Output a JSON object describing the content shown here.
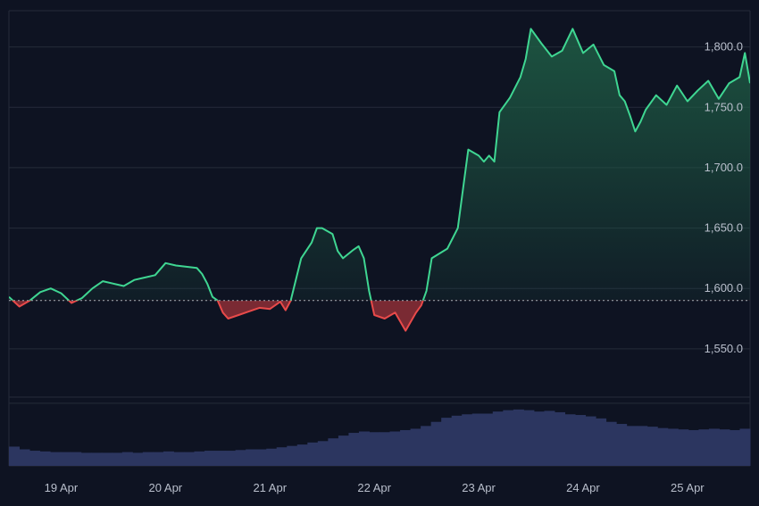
{
  "chart_data": {
    "type": "area",
    "baseline": 1590,
    "ylim": [
      1510,
      1830
    ],
    "y_ticks": [
      {
        "value": 1550,
        "label": "1,550.0"
      },
      {
        "value": 1600,
        "label": "1,600.0"
      },
      {
        "value": 1650,
        "label": "1,650.0"
      },
      {
        "value": 1700,
        "label": "1,700.0"
      },
      {
        "value": 1750,
        "label": "1,750.0"
      },
      {
        "value": 1800,
        "label": "1,800.0"
      }
    ],
    "x_ticks": [
      {
        "day": 0.5,
        "label": "19 Apr"
      },
      {
        "day": 1.5,
        "label": "20 Apr"
      },
      {
        "day": 2.5,
        "label": "21 Apr"
      },
      {
        "day": 3.5,
        "label": "22 Apr"
      },
      {
        "day": 4.5,
        "label": "23 Apr"
      },
      {
        "day": 5.5,
        "label": "24 Apr"
      },
      {
        "day": 6.5,
        "label": "25 Apr"
      }
    ],
    "xlim": [
      0,
      7.1
    ],
    "price_series": {
      "name": "",
      "points": [
        [
          0.0,
          1593
        ],
        [
          0.1,
          1585
        ],
        [
          0.2,
          1590
        ],
        [
          0.3,
          1597
        ],
        [
          0.4,
          1600
        ],
        [
          0.5,
          1596
        ],
        [
          0.6,
          1588
        ],
        [
          0.7,
          1592
        ],
        [
          0.8,
          1600
        ],
        [
          0.9,
          1606
        ],
        [
          1.0,
          1604
        ],
        [
          1.1,
          1602
        ],
        [
          1.2,
          1607
        ],
        [
          1.3,
          1609
        ],
        [
          1.4,
          1611
        ],
        [
          1.5,
          1621
        ],
        [
          1.6,
          1619
        ],
        [
          1.7,
          1618
        ],
        [
          1.8,
          1617
        ],
        [
          1.85,
          1612
        ],
        [
          1.9,
          1604
        ],
        [
          1.95,
          1593
        ],
        [
          2.0,
          1590
        ],
        [
          2.05,
          1580
        ],
        [
          2.1,
          1575
        ],
        [
          2.2,
          1578
        ],
        [
          2.3,
          1581
        ],
        [
          2.4,
          1584
        ],
        [
          2.5,
          1583
        ],
        [
          2.6,
          1589
        ],
        [
          2.65,
          1582
        ],
        [
          2.7,
          1590
        ],
        [
          2.8,
          1625
        ],
        [
          2.9,
          1638
        ],
        [
          2.95,
          1650
        ],
        [
          3.0,
          1650
        ],
        [
          3.1,
          1645
        ],
        [
          3.15,
          1631
        ],
        [
          3.2,
          1625
        ],
        [
          3.3,
          1632
        ],
        [
          3.35,
          1635
        ],
        [
          3.4,
          1625
        ],
        [
          3.45,
          1598
        ],
        [
          3.5,
          1578
        ],
        [
          3.6,
          1575
        ],
        [
          3.7,
          1580
        ],
        [
          3.8,
          1565
        ],
        [
          3.9,
          1580
        ],
        [
          3.95,
          1586
        ],
        [
          4.0,
          1598
        ],
        [
          4.05,
          1625
        ],
        [
          4.2,
          1633
        ],
        [
          4.3,
          1650
        ],
        [
          4.4,
          1715
        ],
        [
          4.5,
          1710
        ],
        [
          4.55,
          1705
        ],
        [
          4.6,
          1710
        ],
        [
          4.65,
          1705
        ],
        [
          4.7,
          1746
        ],
        [
          4.8,
          1758
        ],
        [
          4.9,
          1775
        ],
        [
          4.95,
          1790
        ],
        [
          5.0,
          1815
        ],
        [
          5.1,
          1803
        ],
        [
          5.2,
          1792
        ],
        [
          5.3,
          1797
        ],
        [
          5.4,
          1815
        ],
        [
          5.5,
          1795
        ],
        [
          5.6,
          1802
        ],
        [
          5.7,
          1785
        ],
        [
          5.8,
          1780
        ],
        [
          5.85,
          1760
        ],
        [
          5.9,
          1755
        ],
        [
          5.95,
          1743
        ],
        [
          6.0,
          1730
        ],
        [
          6.05,
          1738
        ],
        [
          6.1,
          1748
        ],
        [
          6.2,
          1760
        ],
        [
          6.3,
          1752
        ],
        [
          6.4,
          1768
        ],
        [
          6.5,
          1755
        ],
        [
          6.6,
          1764
        ],
        [
          6.7,
          1772
        ],
        [
          6.8,
          1757
        ],
        [
          6.9,
          1770
        ],
        [
          7.0,
          1775
        ],
        [
          7.05,
          1795
        ],
        [
          7.1,
          1770
        ]
      ]
    },
    "volume_series": {
      "name": "",
      "values": [
        0.28,
        0.24,
        0.22,
        0.21,
        0.2,
        0.2,
        0.2,
        0.19,
        0.19,
        0.19,
        0.19,
        0.2,
        0.19,
        0.2,
        0.2,
        0.21,
        0.2,
        0.2,
        0.21,
        0.22,
        0.22,
        0.22,
        0.23,
        0.24,
        0.24,
        0.25,
        0.27,
        0.29,
        0.31,
        0.34,
        0.36,
        0.4,
        0.44,
        0.48,
        0.5,
        0.49,
        0.49,
        0.5,
        0.52,
        0.54,
        0.58,
        0.64,
        0.7,
        0.73,
        0.75,
        0.76,
        0.76,
        0.79,
        0.81,
        0.82,
        0.81,
        0.79,
        0.8,
        0.78,
        0.75,
        0.74,
        0.72,
        0.69,
        0.64,
        0.61,
        0.58,
        0.58,
        0.57,
        0.55,
        0.54,
        0.53,
        0.52,
        0.53,
        0.54,
        0.53,
        0.52,
        0.54
      ]
    },
    "colors": {
      "background": "#0e1322",
      "grid": "#252b3a",
      "up_line": "#3fd692",
      "down_line": "#e84a4a",
      "up_fill_top": "#1f5f46",
      "down_fill": "#7a2a33",
      "baseline": "#cfd4dc",
      "volume": "#2c3660",
      "axis_text": "#b9bfcc"
    }
  }
}
